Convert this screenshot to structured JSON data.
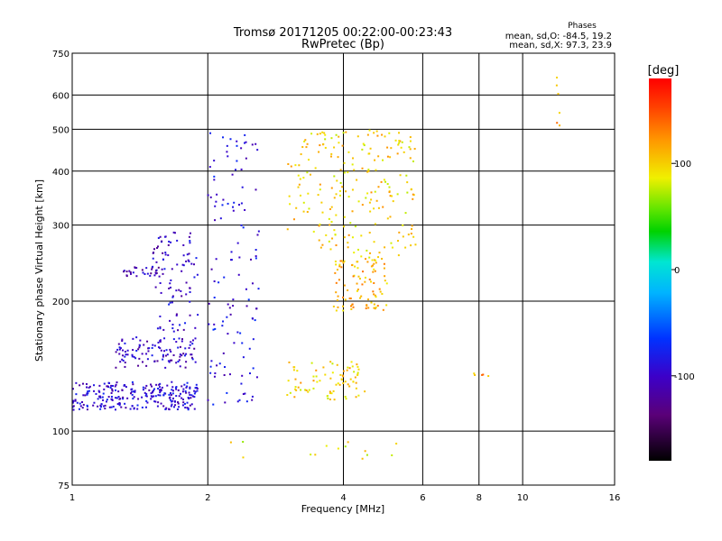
{
  "chart_data": {
    "type": "scatter",
    "title": "Tromsø 20171205 00:22:00-00:23:43",
    "subtitle": "RwPretec (Bp)",
    "stats": {
      "title": "Phases",
      "line1": "mean, sd,O:  -84.5,  19.2",
      "line2": "mean, sd,X:  97.3,  23.9"
    },
    "xlabel": "Frequency [MHz]",
    "ylabel": "Stationary phase Virtual Height [km]",
    "x_scale": "log",
    "y_scale": "log",
    "xlim": [
      1,
      16
    ],
    "ylim": [
      75,
      750
    ],
    "xticks": [
      1,
      2,
      4,
      6,
      8,
      10,
      16
    ],
    "yticks": [
      75,
      100,
      200,
      300,
      400,
      500,
      600,
      750
    ],
    "grid": true,
    "colorbar": {
      "label": "[deg]",
      "range": [
        -180,
        180
      ],
      "ticks": [
        100,
        0,
        -100
      ],
      "colormap": "rainbow (black-purple-blue-cyan-green-yellow-orange-red)"
    },
    "point_groups": [
      {
        "name": "O-mode low layer",
        "x_range": [
          1.0,
          1.9
        ],
        "y_range": [
          112,
          130
        ],
        "phase_mean": -95
      },
      {
        "name": "O-mode band 140-165 km",
        "x_range": [
          1.25,
          1.9
        ],
        "y_range": [
          140,
          165
        ],
        "phase_mean": -100
      },
      {
        "name": "O-mode trace 230 km",
        "x_range": [
          1.3,
          1.6
        ],
        "y_range": [
          228,
          240
        ],
        "phase_mean": -110
      },
      {
        "name": "O-mode rising trace",
        "x_range": [
          1.5,
          1.9
        ],
        "y_range": [
          170,
          290
        ],
        "phase_mean": -100
      },
      {
        "name": "O-mode scatter 2.0-2.6 MHz",
        "x_range": [
          2.0,
          2.6
        ],
        "y_range": [
          115,
          500
        ],
        "phase_mean": -90
      },
      {
        "name": "X-mode band 120-145 km",
        "x_range": [
          3.0,
          4.5
        ],
        "y_range": [
          118,
          145
        ],
        "phase_mean": 100
      },
      {
        "name": "X-mode trace 190-250 km",
        "x_range": [
          3.8,
          5.0
        ],
        "y_range": [
          190,
          250
        ],
        "phase_mean": 110
      },
      {
        "name": "X-mode spread F",
        "x_range": [
          3.0,
          5.8
        ],
        "y_range": [
          250,
          500
        ],
        "phase_mean": 100
      },
      {
        "name": "Sporadic near 100 km",
        "x_range": [
          2.2,
          5.5
        ],
        "y_range": [
          86,
          95
        ],
        "phase_mean": 90
      },
      {
        "name": "Isolated 8 MHz",
        "x_range": [
          7.8,
          8.5
        ],
        "y_range": [
          134,
          137
        ],
        "phase_mean": 120
      },
      {
        "name": "Isolated 12 MHz",
        "x_range": [
          11.9,
          12.1
        ],
        "y_range": [
          490,
          680
        ],
        "phase_mean": 120
      }
    ]
  }
}
